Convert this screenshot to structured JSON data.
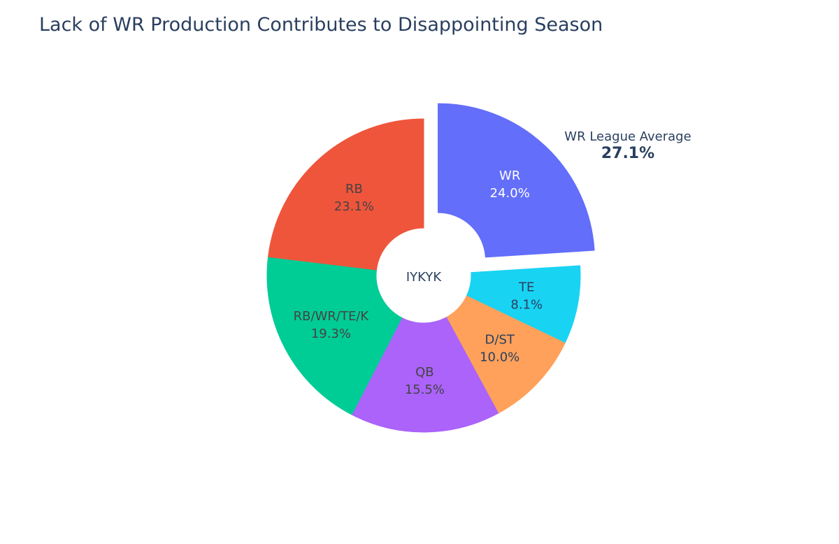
{
  "chart_data": {
    "type": "pie",
    "title": "Lack of WR Production Contributes to Disappointing Season",
    "hole": true,
    "center_label": "IYKYK",
    "slices": [
      {
        "label": "WR",
        "value": 24.0,
        "value_text": "24.0%",
        "color": "#636efa",
        "pulled": true,
        "text_color": "#ffffff"
      },
      {
        "label": "TE",
        "value": 8.1,
        "value_text": "8.1%",
        "color": "#19d3f3",
        "pulled": false,
        "text_color": "#2a3f5f"
      },
      {
        "label": "D/ST",
        "value": 10.0,
        "value_text": "10.0%",
        "color": "#ffa15a",
        "pulled": false,
        "text_color": "#2a3f5f"
      },
      {
        "label": "QB",
        "value": 15.5,
        "value_text": "15.5%",
        "color": "#ab63fa",
        "pulled": false,
        "text_color": "#444444"
      },
      {
        "label": "RB/WR/TE/K",
        "value": 19.3,
        "value_text": "19.3%",
        "color": "#00cc96",
        "pulled": false,
        "text_color": "#444444"
      },
      {
        "label": "RB",
        "value": 23.1,
        "value_text": "23.1%",
        "color": "#ef553b",
        "pulled": false,
        "text_color": "#444444"
      }
    ],
    "annotation": {
      "label": "WR League Average",
      "value_text": "27.1%"
    }
  }
}
